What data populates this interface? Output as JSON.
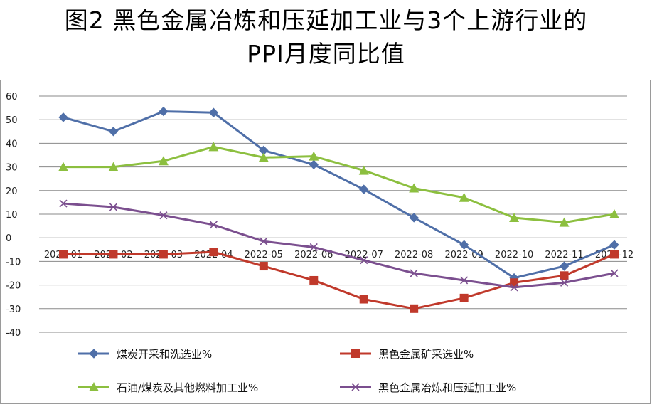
{
  "title_line1": "图2 黑色金属冶炼和压延加工业与3个上游行业的",
  "title_line2": "PPI月度同比值",
  "chart_data": {
    "type": "line",
    "title": "图2 黑色金属冶炼和压延加工业与3个上游行业的PPI月度同比值",
    "categories": [
      "2022-01",
      "2022-02",
      "2022-03",
      "2022-04",
      "2022-05",
      "2022-06",
      "2022-07",
      "2022-08",
      "2022-09",
      "2022-10",
      "2022-11",
      "2022-12"
    ],
    "y_ticks": [
      60,
      50,
      40,
      30,
      20,
      10,
      0,
      -10,
      -20,
      -30,
      -40
    ],
    "ylim": [
      -40,
      60
    ],
    "grid": true,
    "legend_position": "bottom",
    "series": [
      {
        "name": "煤炭开采和洗选业%",
        "color": "#4f6fa8",
        "marker": "diamond",
        "values": [
          51,
          45,
          53.5,
          53,
          37,
          31,
          20.5,
          8.5,
          -3,
          -17,
          -12,
          -3
        ]
      },
      {
        "name": "黑色金属矿采选业%",
        "color": "#c0392b",
        "marker": "square",
        "values": [
          -7,
          -7,
          -7,
          -6,
          -12,
          -18,
          -26,
          -30,
          -25.5,
          -19,
          -16,
          -7
        ]
      },
      {
        "name": "石油/煤炭及其他燃料加工业%",
        "color": "#8cbf3f",
        "marker": "triangle",
        "values": [
          30,
          30,
          32.5,
          38.5,
          34,
          34.5,
          28.5,
          21,
          17,
          8.5,
          6.5,
          10
        ]
      },
      {
        "name": "黑色金属冶炼和压延加工业%",
        "color": "#7b4f8f",
        "marker": "x",
        "values": [
          14.5,
          13,
          9.5,
          5.5,
          -1.5,
          -4,
          -9.5,
          -15,
          -18,
          -21,
          -19,
          -15
        ]
      }
    ]
  }
}
